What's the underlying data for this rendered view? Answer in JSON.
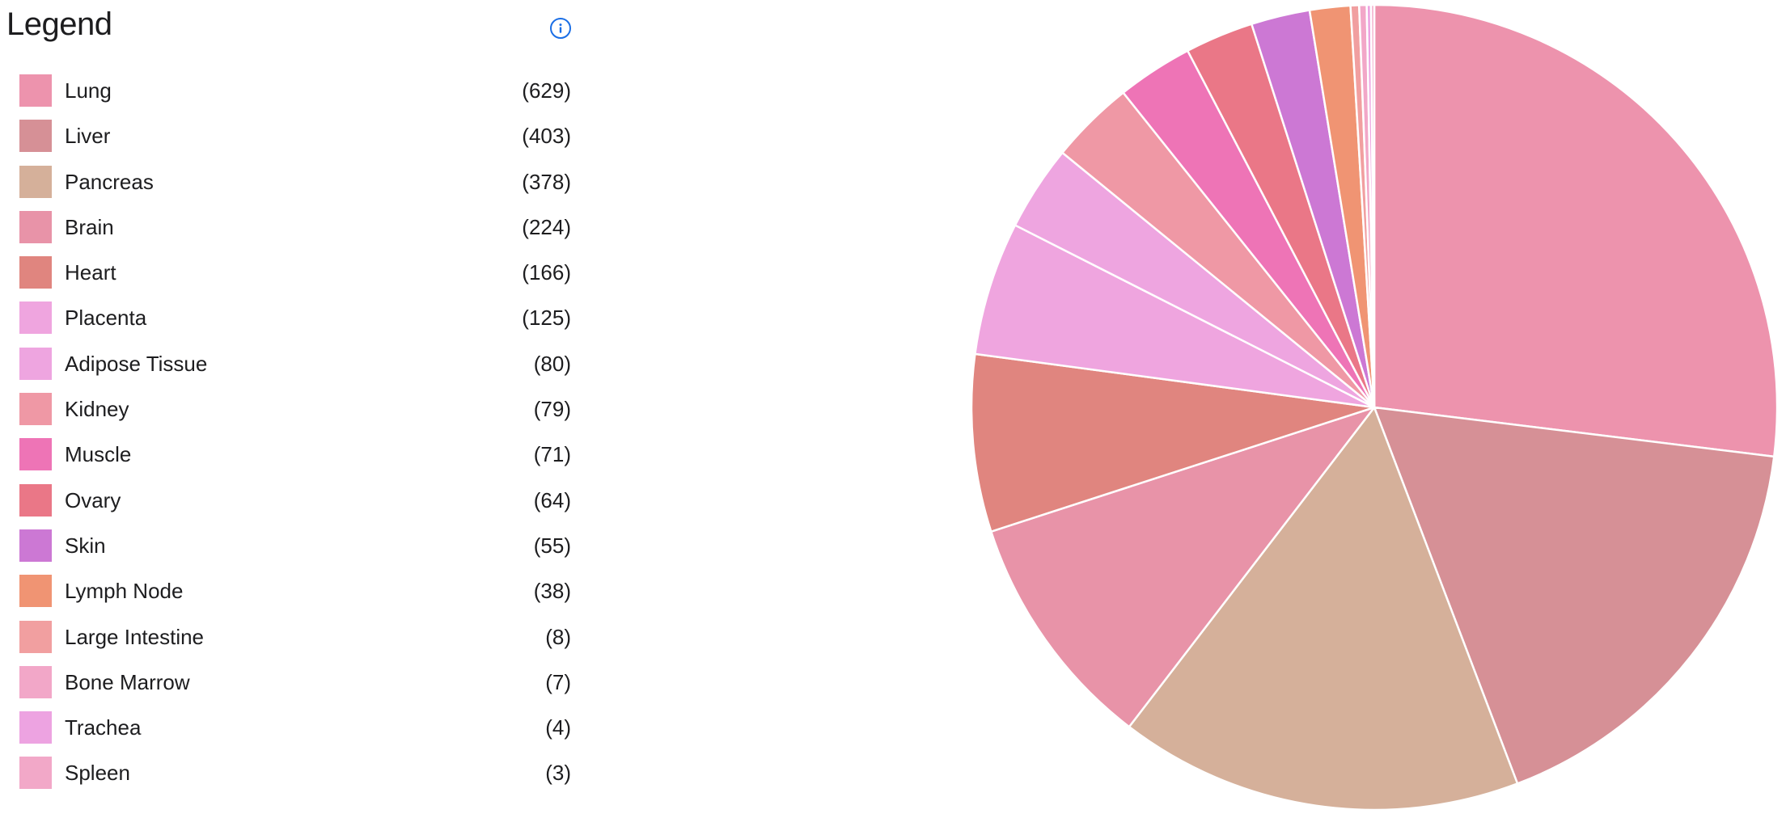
{
  "legend": {
    "title": "Legend",
    "info_icon": "info-circle-icon"
  },
  "chart_data": {
    "type": "pie",
    "categories": [
      "Lung",
      "Liver",
      "Pancreas",
      "Brain",
      "Heart",
      "Placenta",
      "Adipose Tissue",
      "Kidney",
      "Muscle",
      "Ovary",
      "Skin",
      "Lymph Node",
      "Large Intestine",
      "Bone Marrow",
      "Trachea",
      "Spleen"
    ],
    "values": [
      629,
      403,
      378,
      224,
      166,
      125,
      80,
      79,
      71,
      64,
      55,
      38,
      8,
      7,
      4,
      3
    ],
    "count_labels": [
      "(629)",
      "(403)",
      "(378)",
      "(224)",
      "(166)",
      "(125)",
      "(80)",
      "(79)",
      "(71)",
      "(64)",
      "(55)",
      "(38)",
      "(8)",
      "(7)",
      "(4)",
      "(3)"
    ],
    "colors": [
      "#ed93ad",
      "#d69096",
      "#d5b09a",
      "#e893a8",
      "#e0857f",
      "#efa5df",
      "#eea5e0",
      "#ef98a5",
      "#ee74b6",
      "#ea7787",
      "#cc78d4",
      "#f09473",
      "#f19fa0",
      "#f2a7c8",
      "#eda3e1",
      "#f2a8c8"
    ],
    "start_angle": "12 o'clock",
    "direction": "clockwise",
    "legend_placement": "left"
  }
}
